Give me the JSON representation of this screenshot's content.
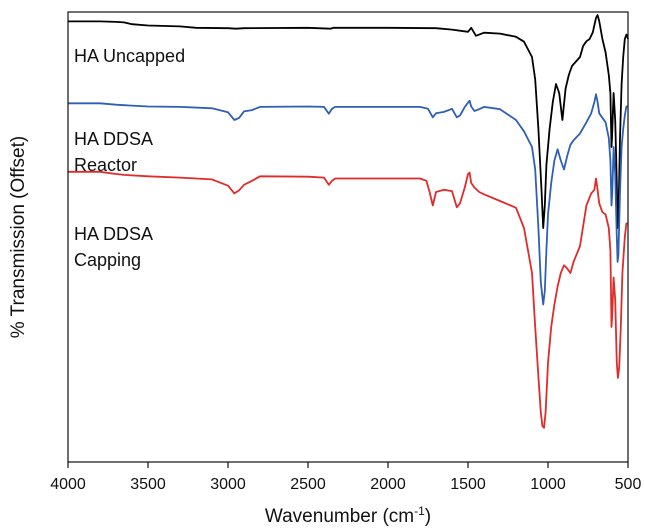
{
  "chart_data": {
    "type": "line",
    "xlabel": "Wavenumber (cm",
    "xlabel_sup": "-1",
    "xlabel_close": ")",
    "ylabel": "% Transmission (Offset)",
    "xlim": [
      4000,
      500
    ],
    "x_reversed": true,
    "ylim": [
      0,
      100
    ],
    "y_tick_labels_shown": false,
    "grid": false,
    "xticks": [
      4000,
      3500,
      3000,
      2500,
      2000,
      1500,
      1000,
      500
    ],
    "series": [
      {
        "name_lines": [
          "HA Uncapped"
        ],
        "color": "#000000",
        "points": [
          [
            4000,
            97.9
          ],
          [
            3800,
            97.9
          ],
          [
            3700,
            97.8
          ],
          [
            3650,
            97.7
          ],
          [
            3600,
            97.3
          ],
          [
            3500,
            97.0
          ],
          [
            3300,
            96.8
          ],
          [
            3200,
            96.5
          ],
          [
            3000,
            96.4
          ],
          [
            2950,
            96.3
          ],
          [
            2900,
            96.4
          ],
          [
            2500,
            96.5
          ],
          [
            2360,
            96.3
          ],
          [
            2340,
            96.5
          ],
          [
            2000,
            96.5
          ],
          [
            1700,
            96.4
          ],
          [
            1600,
            96.1
          ],
          [
            1500,
            95.6
          ],
          [
            1480,
            96.5
          ],
          [
            1450,
            94.7
          ],
          [
            1400,
            95.4
          ],
          [
            1300,
            95.2
          ],
          [
            1200,
            94.5
          ],
          [
            1150,
            93.4
          ],
          [
            1100,
            90.0
          ],
          [
            1080,
            85.0
          ],
          [
            1060,
            74.0
          ],
          [
            1040,
            60.0
          ],
          [
            1030,
            52.0
          ],
          [
            1020,
            57.0
          ],
          [
            1010,
            66.0
          ],
          [
            990,
            74.0
          ],
          [
            970,
            80.0
          ],
          [
            950,
            84.0
          ],
          [
            930,
            82.0
          ],
          [
            910,
            76.0
          ],
          [
            890,
            83.0
          ],
          [
            870,
            86.0
          ],
          [
            850,
            88.0
          ],
          [
            800,
            90.0
          ],
          [
            780,
            92.5
          ],
          [
            760,
            93.5
          ],
          [
            740,
            94.0
          ],
          [
            720,
            95.5
          ],
          [
            700,
            98.7
          ],
          [
            690,
            99.3
          ],
          [
            680,
            98.0
          ],
          [
            660,
            94.0
          ],
          [
            640,
            91.0
          ],
          [
            620,
            86.0
          ],
          [
            610,
            82.0
          ],
          [
            603,
            70.0
          ],
          [
            600,
            72.0
          ],
          [
            590,
            82.0
          ],
          [
            580,
            76.0
          ],
          [
            570,
            62.0
          ],
          [
            565,
            52.0
          ],
          [
            560,
            54.0
          ],
          [
            550,
            72.0
          ],
          [
            540,
            84.0
          ],
          [
            530,
            90.0
          ],
          [
            520,
            94.0
          ],
          [
            510,
            95.0
          ],
          [
            500,
            94.0
          ]
        ]
      },
      {
        "name_lines": [
          "HA DDSA",
          "Reactor"
        ],
        "color": "#2e5fb5",
        "points": [
          [
            4000,
            79.7
          ],
          [
            3800,
            79.7
          ],
          [
            3700,
            79.4
          ],
          [
            3650,
            79.3
          ],
          [
            3600,
            79.2
          ],
          [
            3500,
            79.0
          ],
          [
            3300,
            78.9
          ],
          [
            3100,
            78.6
          ],
          [
            3000,
            77.7
          ],
          [
            2960,
            76.0
          ],
          [
            2930,
            76.5
          ],
          [
            2900,
            77.9
          ],
          [
            2850,
            78.2
          ],
          [
            2800,
            78.9
          ],
          [
            2500,
            79.0
          ],
          [
            2400,
            78.9
          ],
          [
            2370,
            77.4
          ],
          [
            2350,
            78.5
          ],
          [
            2330,
            78.9
          ],
          [
            2000,
            78.9
          ],
          [
            1800,
            78.9
          ],
          [
            1750,
            78.5
          ],
          [
            1720,
            76.6
          ],
          [
            1700,
            77.5
          ],
          [
            1650,
            77.8
          ],
          [
            1600,
            78.5
          ],
          [
            1570,
            76.6
          ],
          [
            1550,
            77.0
          ],
          [
            1520,
            78.9
          ],
          [
            1490,
            80.3
          ],
          [
            1480,
            79.0
          ],
          [
            1460,
            78.0
          ],
          [
            1430,
            78.4
          ],
          [
            1400,
            78.9
          ],
          [
            1300,
            78.4
          ],
          [
            1200,
            76.0
          ],
          [
            1150,
            73.5
          ],
          [
            1100,
            70.0
          ],
          [
            1080,
            65.0
          ],
          [
            1060,
            52.0
          ],
          [
            1045,
            40.0
          ],
          [
            1030,
            35.0
          ],
          [
            1020,
            38.0
          ],
          [
            1010,
            47.0
          ],
          [
            1000,
            55.0
          ],
          [
            980,
            62.0
          ],
          [
            960,
            67.0
          ],
          [
            940,
            69.5
          ],
          [
            920,
            67.0
          ],
          [
            900,
            65.0
          ],
          [
            880,
            68.0
          ],
          [
            860,
            70.5
          ],
          [
            840,
            71.5
          ],
          [
            800,
            73.0
          ],
          [
            760,
            75.5
          ],
          [
            730,
            77.5
          ],
          [
            710,
            80.0
          ],
          [
            700,
            81.7
          ],
          [
            690,
            80.0
          ],
          [
            680,
            77.5
          ],
          [
            660,
            76.5
          ],
          [
            640,
            75.5
          ],
          [
            620,
            72.0
          ],
          [
            610,
            67.0
          ],
          [
            603,
            57.0
          ],
          [
            598,
            60.0
          ],
          [
            590,
            70.0
          ],
          [
            580,
            64.0
          ],
          [
            570,
            50.0
          ],
          [
            565,
            44.5
          ],
          [
            560,
            46.0
          ],
          [
            550,
            60.0
          ],
          [
            540,
            70.0
          ],
          [
            530,
            74.0
          ],
          [
            520,
            77.0
          ],
          [
            510,
            79.0
          ],
          [
            500,
            79.0
          ]
        ]
      },
      {
        "name_lines": [
          "HA DDSA",
          "Capping"
        ],
        "color": "#e02b2b",
        "points": [
          [
            4000,
            64.5
          ],
          [
            3800,
            64.5
          ],
          [
            3700,
            64.0
          ],
          [
            3650,
            63.8
          ],
          [
            3600,
            63.7
          ],
          [
            3500,
            63.5
          ],
          [
            3300,
            63.2
          ],
          [
            3100,
            62.8
          ],
          [
            3000,
            61.4
          ],
          [
            2960,
            59.7
          ],
          [
            2930,
            60.4
          ],
          [
            2900,
            61.6
          ],
          [
            2850,
            62.5
          ],
          [
            2800,
            63.5
          ],
          [
            2500,
            63.4
          ],
          [
            2400,
            63.2
          ],
          [
            2370,
            61.6
          ],
          [
            2350,
            62.5
          ],
          [
            2330,
            63.0
          ],
          [
            2000,
            63.0
          ],
          [
            1800,
            63.0
          ],
          [
            1760,
            62.5
          ],
          [
            1740,
            60.0
          ],
          [
            1720,
            57.0
          ],
          [
            1700,
            60.0
          ],
          [
            1650,
            60.5
          ],
          [
            1600,
            60.2
          ],
          [
            1570,
            56.6
          ],
          [
            1550,
            57.5
          ],
          [
            1520,
            61.0
          ],
          [
            1500,
            64.0
          ],
          [
            1490,
            64.3
          ],
          [
            1480,
            62.0
          ],
          [
            1460,
            61.0
          ],
          [
            1430,
            60.0
          ],
          [
            1400,
            59.5
          ],
          [
            1300,
            58.0
          ],
          [
            1200,
            56.5
          ],
          [
            1150,
            52.0
          ],
          [
            1100,
            42.0
          ],
          [
            1080,
            30.0
          ],
          [
            1060,
            19.0
          ],
          [
            1045,
            11.0
          ],
          [
            1035,
            8.0
          ],
          [
            1025,
            7.6
          ],
          [
            1015,
            11.0
          ],
          [
            1000,
            22.0
          ],
          [
            980,
            30.0
          ],
          [
            960,
            35.0
          ],
          [
            940,
            39.0
          ],
          [
            920,
            42.0
          ],
          [
            900,
            43.7
          ],
          [
            880,
            43.0
          ],
          [
            860,
            42.0
          ],
          [
            840,
            44.5
          ],
          [
            800,
            48.0
          ],
          [
            760,
            57.0
          ],
          [
            730,
            59.7
          ],
          [
            710,
            60.5
          ],
          [
            700,
            63.0
          ],
          [
            690,
            60.5
          ],
          [
            680,
            57.5
          ],
          [
            660,
            55.5
          ],
          [
            640,
            55.0
          ],
          [
            620,
            52.0
          ],
          [
            610,
            47.0
          ],
          [
            603,
            30.0
          ],
          [
            598,
            33.0
          ],
          [
            590,
            41.0
          ],
          [
            580,
            36.0
          ],
          [
            570,
            22.0
          ],
          [
            563,
            18.7
          ],
          [
            555,
            21.0
          ],
          [
            545,
            30.0
          ],
          [
            535,
            42.0
          ],
          [
            520,
            50.0
          ],
          [
            510,
            53.0
          ],
          [
            500,
            53.0
          ]
        ]
      }
    ]
  }
}
